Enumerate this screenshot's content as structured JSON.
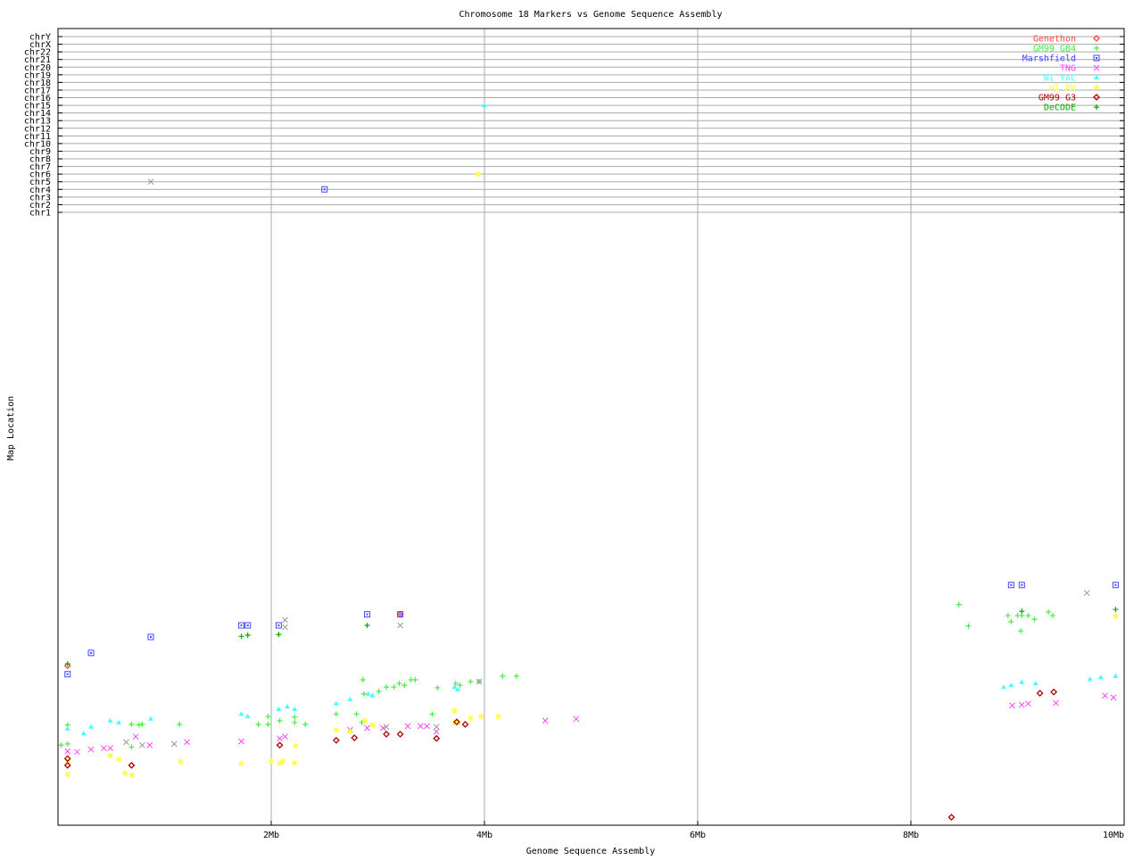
{
  "chart_data": {
    "type": "scatter",
    "title": "Chromosome 18 Markers vs Genome Sequence Assembly",
    "xlabel": "Genome Sequence Assembly",
    "ylabel": "Map Location",
    "xlim": [
      0,
      10
    ],
    "x_unit": "Mb",
    "x_ticks": [
      {
        "v": 2,
        "label": "2Mb"
      },
      {
        "v": 4,
        "label": "4Mb"
      },
      {
        "v": 6,
        "label": "6Mb"
      },
      {
        "v": 8,
        "label": "8Mb"
      },
      {
        "v": 10,
        "label": "10Mb"
      }
    ],
    "y_categories": [
      "chr1",
      "chr2",
      "chr3",
      "chr4",
      "chr5",
      "chr6",
      "chr7",
      "chr8",
      "chr9",
      "chr10",
      "chr11",
      "chr12",
      "chr13",
      "chr14",
      "chr15",
      "chr16",
      "chr17",
      "chr18",
      "chr19",
      "chr20",
      "chr21",
      "chr22",
      "chrX",
      "chrY"
    ],
    "chr18_map_location_range": [
      0,
      100
    ],
    "grid": true,
    "legend_position": "top-right",
    "series": [
      {
        "name": "Genethon",
        "color": "#ff4444",
        "marker": "diamond",
        "points": [
          [
            0.09,
            26.1
          ],
          [
            3.21,
            34.5
          ]
        ]
      },
      {
        "name": "GM99 GB4",
        "color": "#44ee44",
        "marker": "plus",
        "points": [
          [
            0.09,
            16.4
          ],
          [
            0.09,
            13.3
          ],
          [
            0.03,
            13.1
          ],
          [
            0.69,
            16.5
          ],
          [
            0.76,
            16.4
          ],
          [
            0.79,
            16.5
          ],
          [
            0.69,
            12.8
          ],
          [
            1.14,
            16.5
          ],
          [
            1.88,
            16.5
          ],
          [
            1.97,
            16.5
          ],
          [
            2.08,
            17.1
          ],
          [
            2.22,
            17.7
          ],
          [
            2.22,
            16.8
          ],
          [
            2.32,
            16.5
          ],
          [
            2.61,
            18.2
          ],
          [
            2.8,
            18.2
          ],
          [
            2.87,
            21.5
          ],
          [
            3.01,
            21.9
          ],
          [
            3.08,
            22.6
          ],
          [
            3.15,
            22.6
          ],
          [
            3.25,
            22.9
          ],
          [
            3.31,
            23.8
          ],
          [
            3.35,
            23.8
          ],
          [
            2.86,
            23.8
          ],
          [
            3.56,
            22.5
          ],
          [
            3.51,
            18.2
          ],
          [
            3.73,
            23.2
          ],
          [
            3.77,
            22.9
          ],
          [
            3.87,
            23.5
          ],
          [
            3.95,
            23.5
          ],
          [
            4.17,
            24.4
          ],
          [
            4.3,
            24.4
          ],
          [
            3.2,
            23.2
          ],
          [
            1.97,
            17.8
          ],
          [
            2.85,
            16.8
          ],
          [
            8.45,
            36.1
          ],
          [
            8.54,
            32.6
          ],
          [
            8.91,
            34.3
          ],
          [
            8.94,
            33.3
          ],
          [
            9.0,
            34.3
          ],
          [
            9.04,
            34.3
          ],
          [
            9.03,
            31.8
          ],
          [
            9.1,
            34.3
          ],
          [
            9.16,
            33.7
          ],
          [
            9.29,
            34.9
          ],
          [
            9.33,
            34.3
          ]
        ]
      },
      {
        "name": "Marshfield",
        "color": "#4444ff",
        "marker": "square",
        "points": [
          [
            0.09,
            24.7
          ],
          [
            0.31,
            28.2
          ],
          [
            0.87,
            30.8
          ],
          [
            1.72,
            32.7
          ],
          [
            1.78,
            32.7
          ],
          [
            2.07,
            32.7
          ],
          [
            2.9,
            34.5
          ],
          [
            3.21,
            34.5
          ],
          [
            8.94,
            39.3
          ],
          [
            9.04,
            39.3
          ],
          [
            9.92,
            39.3
          ],
          [
            2.5,
            "chr4"
          ]
        ]
      },
      {
        "name": "TNG",
        "color": "#ff44ff",
        "marker": "cross",
        "points": [
          [
            0.09,
            12.1
          ],
          [
            0.18,
            12.0
          ],
          [
            0.31,
            12.4
          ],
          [
            0.43,
            12.6
          ],
          [
            0.49,
            12.6
          ],
          [
            0.73,
            14.5
          ],
          [
            0.86,
            13.1
          ],
          [
            1.21,
            13.6
          ],
          [
            1.72,
            13.7
          ],
          [
            2.08,
            14.2
          ],
          [
            2.13,
            14.5
          ],
          [
            2.74,
            15.6
          ],
          [
            2.9,
            15.9
          ],
          [
            3.05,
            15.9
          ],
          [
            3.28,
            16.2
          ],
          [
            3.4,
            16.2
          ],
          [
            3.46,
            16.2
          ],
          [
            3.55,
            15.3
          ],
          [
            4.57,
            17.1
          ],
          [
            4.86,
            17.4
          ],
          [
            8.95,
            19.6
          ],
          [
            9.04,
            19.7
          ],
          [
            9.1,
            19.9
          ],
          [
            9.36,
            20.0
          ],
          [
            9.82,
            21.2
          ],
          [
            9.9,
            20.9
          ]
        ]
      },
      {
        "name": "WI YAC",
        "color": "#44ffff",
        "marker": "triangle",
        "points": [
          [
            0.09,
            15.8
          ],
          [
            0.24,
            15.0
          ],
          [
            0.31,
            16.1
          ],
          [
            0.49,
            17.1
          ],
          [
            0.57,
            16.8
          ],
          [
            0.87,
            17.4
          ],
          [
            1.72,
            18.2
          ],
          [
            1.78,
            17.8
          ],
          [
            2.07,
            19.0
          ],
          [
            2.15,
            19.4
          ],
          [
            2.22,
            19.0
          ],
          [
            2.61,
            19.9
          ],
          [
            2.74,
            20.6
          ],
          [
            2.91,
            21.5
          ],
          [
            2.95,
            21.2
          ],
          [
            3.72,
            22.6
          ],
          [
            3.75,
            22.2
          ],
          [
            8.87,
            22.6
          ],
          [
            8.94,
            22.9
          ],
          [
            9.04,
            23.4
          ],
          [
            9.17,
            23.2
          ],
          [
            9.68,
            23.9
          ],
          [
            9.78,
            24.2
          ],
          [
            9.92,
            24.4
          ],
          [
            4.0,
            "chr15"
          ]
        ]
      },
      {
        "name": "WI RH",
        "color": "#ffff44",
        "marker": "star",
        "points": [
          [
            0.09,
            10.5
          ],
          [
            0.09,
            8.3
          ],
          [
            0.49,
            11.4
          ],
          [
            0.57,
            10.8
          ],
          [
            0.63,
            8.5
          ],
          [
            0.69,
            8.2
          ],
          [
            1.15,
            10.4
          ],
          [
            1.72,
            10.1
          ],
          [
            2.0,
            10.5
          ],
          [
            2.08,
            10.1
          ],
          [
            2.11,
            10.5
          ],
          [
            2.22,
            10.2
          ],
          [
            2.23,
            13.0
          ],
          [
            2.61,
            15.6
          ],
          [
            2.74,
            15.3
          ],
          [
            2.88,
            17.1
          ],
          [
            2.95,
            16.4
          ],
          [
            3.72,
            18.7
          ],
          [
            3.72,
            16.8
          ],
          [
            3.75,
            16.8
          ],
          [
            3.87,
            17.5
          ],
          [
            3.97,
            17.8
          ],
          [
            4.13,
            17.8
          ],
          [
            9.92,
            34.2
          ],
          [
            3.94,
            "chr6"
          ]
        ]
      },
      {
        "name": "GM99 G3",
        "color": "#aa0000",
        "marker": "diamond",
        "points": [
          [
            0.09,
            10.9
          ],
          [
            0.09,
            9.8
          ],
          [
            0.69,
            9.8
          ],
          [
            2.08,
            13.1
          ],
          [
            2.61,
            13.9
          ],
          [
            2.78,
            14.3
          ],
          [
            3.08,
            14.9
          ],
          [
            3.21,
            14.9
          ],
          [
            3.55,
            14.2
          ],
          [
            3.74,
            16.9
          ],
          [
            3.82,
            16.5
          ],
          [
            9.21,
            21.6
          ],
          [
            9.34,
            21.8
          ],
          [
            8.38,
            1.3
          ]
        ]
      },
      {
        "name": "DeCODE",
        "color": "#00aa00",
        "marker": "plus",
        "points": [
          [
            0.09,
            26.4
          ],
          [
            1.72,
            30.9
          ],
          [
            1.78,
            31.1
          ],
          [
            2.07,
            31.2
          ],
          [
            2.9,
            32.7
          ],
          [
            9.04,
            35.0
          ],
          [
            9.92,
            35.3
          ]
        ]
      },
      {
        "color": "#999999",
        "marker": "cross",
        "points": [
          [
            0.87,
            "chr5"
          ],
          [
            0.64,
            13.6
          ],
          [
            0.79,
            13.1
          ],
          [
            1.09,
            13.3
          ],
          [
            3.08,
            16.1
          ],
          [
            3.55,
            16.1
          ],
          [
            2.13,
            33.6
          ],
          [
            2.13,
            32.4
          ],
          [
            3.21,
            32.7
          ],
          [
            3.95,
            23.5
          ],
          [
            9.65,
            38.0
          ]
        ]
      }
    ]
  }
}
